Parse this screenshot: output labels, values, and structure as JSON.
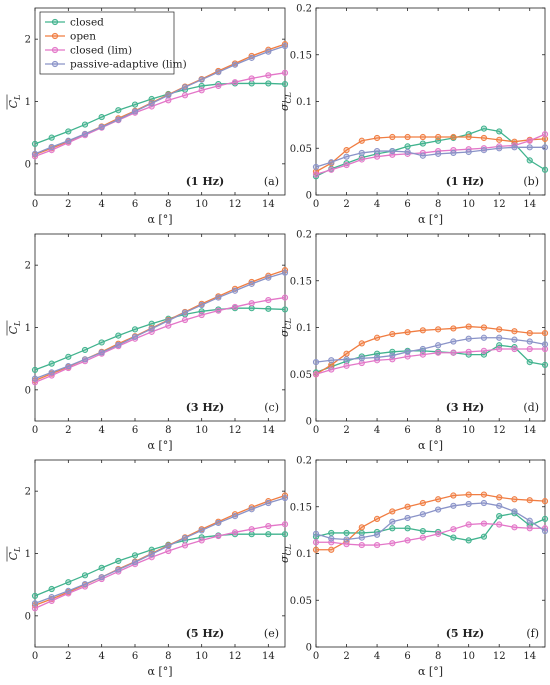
{
  "colors": {
    "closed": "#41b38e",
    "open": "#f07d42",
    "closed_lim": "#e376c8",
    "passive": "#8a93c8"
  },
  "legend": [
    "closed",
    "open",
    "closed (lim)",
    "passive-adaptive (lim)"
  ],
  "chart_data": [
    {
      "type": "line",
      "id": "a",
      "tag": "(a)",
      "freq": "(1 Hz)",
      "xlabel": "α [°]",
      "ylabel": "C_L",
      "ylim": [
        -0.5,
        2.5
      ],
      "xlim": [
        0,
        15
      ],
      "yticks": [
        "0",
        "1",
        "2"
      ],
      "xticks": [
        "0",
        "2",
        "4",
        "6",
        "8",
        "10",
        "12",
        "14"
      ],
      "x": [
        0,
        1,
        2,
        3,
        4,
        5,
        6,
        7,
        8,
        9,
        10,
        11,
        12,
        13,
        14,
        15
      ],
      "series": [
        {
          "name": "closed",
          "values": [
            0.32,
            0.42,
            0.52,
            0.63,
            0.75,
            0.86,
            0.95,
            1.04,
            1.12,
            1.19,
            1.25,
            1.28,
            1.29,
            1.29,
            1.29,
            1.28
          ]
        },
        {
          "name": "open",
          "values": [
            0.15,
            0.25,
            0.36,
            0.48,
            0.6,
            0.73,
            0.85,
            0.98,
            1.11,
            1.24,
            1.36,
            1.49,
            1.61,
            1.73,
            1.83,
            1.92
          ]
        },
        {
          "name": "closed (lim)",
          "values": [
            0.12,
            0.22,
            0.34,
            0.46,
            0.58,
            0.7,
            0.82,
            0.92,
            1.02,
            1.1,
            1.18,
            1.25,
            1.31,
            1.37,
            1.42,
            1.46
          ]
        },
        {
          "name": "passive-adaptive (lim)",
          "values": [
            0.16,
            0.27,
            0.37,
            0.48,
            0.59,
            0.71,
            0.84,
            0.97,
            1.1,
            1.23,
            1.35,
            1.47,
            1.59,
            1.7,
            1.8,
            1.89
          ]
        }
      ]
    },
    {
      "type": "line",
      "id": "b",
      "tag": "(b)",
      "freq": "(1 Hz)",
      "xlabel": "α [°]",
      "ylabel": "σ_CL",
      "ylim": [
        0,
        0.2
      ],
      "xlim": [
        0,
        15
      ],
      "yticks": [
        "0",
        "0.05",
        "0.1",
        "0.15",
        "0.2"
      ],
      "xticks": [
        "0",
        "2",
        "4",
        "6",
        "8",
        "10",
        "12",
        "14"
      ],
      "x": [
        0,
        1,
        2,
        3,
        4,
        5,
        6,
        7,
        8,
        9,
        10,
        11,
        12,
        13,
        14,
        15
      ],
      "series": [
        {
          "name": "closed",
          "values": [
            0.02,
            0.028,
            0.034,
            0.04,
            0.044,
            0.047,
            0.052,
            0.055,
            0.058,
            0.061,
            0.065,
            0.071,
            0.068,
            0.055,
            0.037,
            0.027
          ]
        },
        {
          "name": "open",
          "values": [
            0.025,
            0.034,
            0.048,
            0.058,
            0.061,
            0.062,
            0.062,
            0.062,
            0.062,
            0.062,
            0.062,
            0.061,
            0.059,
            0.057,
            0.059,
            0.06
          ]
        },
        {
          "name": "closed (lim)",
          "values": [
            0.022,
            0.027,
            0.032,
            0.038,
            0.041,
            0.043,
            0.044,
            0.045,
            0.047,
            0.048,
            0.049,
            0.05,
            0.052,
            0.053,
            0.058,
            0.065
          ]
        },
        {
          "name": "passive-adaptive (lim)",
          "values": [
            0.03,
            0.035,
            0.041,
            0.045,
            0.047,
            0.047,
            0.046,
            0.042,
            0.044,
            0.045,
            0.046,
            0.048,
            0.05,
            0.051,
            0.051,
            0.051
          ]
        }
      ]
    },
    {
      "type": "line",
      "id": "c",
      "tag": "(c)",
      "freq": "(3 Hz)",
      "xlabel": "α [°]",
      "ylabel": "C_L",
      "ylim": [
        -0.5,
        2.5
      ],
      "xlim": [
        0,
        15
      ],
      "yticks": [
        "0",
        "1",
        "2"
      ],
      "xticks": [
        "0",
        "2",
        "4",
        "6",
        "8",
        "10",
        "12",
        "14"
      ],
      "x": [
        0,
        1,
        2,
        3,
        4,
        5,
        6,
        7,
        8,
        9,
        10,
        11,
        12,
        13,
        14,
        15
      ],
      "series": [
        {
          "name": "closed",
          "values": [
            0.32,
            0.42,
            0.53,
            0.64,
            0.76,
            0.87,
            0.97,
            1.06,
            1.14,
            1.21,
            1.26,
            1.29,
            1.31,
            1.31,
            1.3,
            1.29
          ]
        },
        {
          "name": "open",
          "values": [
            0.15,
            0.26,
            0.37,
            0.49,
            0.61,
            0.74,
            0.86,
            0.99,
            1.12,
            1.25,
            1.38,
            1.5,
            1.62,
            1.73,
            1.83,
            1.92
          ]
        },
        {
          "name": "closed (lim)",
          "values": [
            0.12,
            0.23,
            0.35,
            0.46,
            0.58,
            0.7,
            0.82,
            0.93,
            1.03,
            1.12,
            1.2,
            1.27,
            1.33,
            1.39,
            1.44,
            1.48
          ]
        },
        {
          "name": "passive-adaptive (lim)",
          "values": [
            0.18,
            0.28,
            0.38,
            0.49,
            0.6,
            0.72,
            0.85,
            0.98,
            1.11,
            1.24,
            1.36,
            1.48,
            1.59,
            1.7,
            1.8,
            1.88
          ]
        }
      ]
    },
    {
      "type": "line",
      "id": "d",
      "tag": "(d)",
      "freq": "(3 Hz)",
      "xlabel": "α [°]",
      "ylabel": "σ_CL",
      "ylim": [
        0,
        0.2
      ],
      "xlim": [
        0,
        15
      ],
      "yticks": [
        "0",
        "0.05",
        "0.1",
        "0.15",
        "0.2"
      ],
      "xticks": [
        "0",
        "2",
        "4",
        "6",
        "8",
        "10",
        "12",
        "14"
      ],
      "x": [
        0,
        1,
        2,
        3,
        4,
        5,
        6,
        7,
        8,
        9,
        10,
        11,
        12,
        13,
        14,
        15
      ],
      "series": [
        {
          "name": "closed",
          "values": [
            0.052,
            0.058,
            0.064,
            0.069,
            0.072,
            0.074,
            0.075,
            0.075,
            0.074,
            0.073,
            0.071,
            0.071,
            0.081,
            0.079,
            0.063,
            0.06
          ]
        },
        {
          "name": "open",
          "values": [
            0.05,
            0.06,
            0.072,
            0.083,
            0.089,
            0.093,
            0.095,
            0.097,
            0.098,
            0.099,
            0.101,
            0.1,
            0.098,
            0.096,
            0.094,
            0.094
          ]
        },
        {
          "name": "closed (lim)",
          "values": [
            0.05,
            0.055,
            0.059,
            0.062,
            0.065,
            0.066,
            0.069,
            0.071,
            0.073,
            0.073,
            0.074,
            0.075,
            0.077,
            0.077,
            0.077,
            0.077
          ]
        },
        {
          "name": "passive-adaptive (lim)",
          "values": [
            0.063,
            0.065,
            0.066,
            0.067,
            0.068,
            0.07,
            0.074,
            0.077,
            0.081,
            0.085,
            0.088,
            0.089,
            0.089,
            0.087,
            0.085,
            0.082
          ]
        }
      ]
    },
    {
      "type": "line",
      "id": "e",
      "tag": "(e)",
      "freq": "(5 Hz)",
      "xlabel": "α [°]",
      "ylabel": "C_L",
      "ylim": [
        -0.5,
        2.5
      ],
      "xlim": [
        0,
        15
      ],
      "yticks": [
        "0",
        "1",
        "2"
      ],
      "xticks": [
        "0",
        "2",
        "4",
        "6",
        "8",
        "10",
        "12",
        "14"
      ],
      "x": [
        0,
        1,
        2,
        3,
        4,
        5,
        6,
        7,
        8,
        9,
        10,
        11,
        12,
        13,
        14,
        15
      ],
      "series": [
        {
          "name": "closed",
          "values": [
            0.32,
            0.43,
            0.54,
            0.65,
            0.77,
            0.88,
            0.97,
            1.06,
            1.14,
            1.21,
            1.26,
            1.29,
            1.31,
            1.31,
            1.31,
            1.31
          ]
        },
        {
          "name": "open",
          "values": [
            0.17,
            0.27,
            0.38,
            0.5,
            0.62,
            0.75,
            0.87,
            1.0,
            1.13,
            1.26,
            1.39,
            1.51,
            1.63,
            1.74,
            1.84,
            1.93
          ]
        },
        {
          "name": "closed (lim)",
          "values": [
            0.12,
            0.24,
            0.36,
            0.47,
            0.59,
            0.71,
            0.83,
            0.94,
            1.04,
            1.13,
            1.21,
            1.28,
            1.34,
            1.39,
            1.44,
            1.47
          ]
        },
        {
          "name": "passive-adaptive (lim)",
          "values": [
            0.2,
            0.3,
            0.4,
            0.51,
            0.62,
            0.74,
            0.86,
            0.99,
            1.12,
            1.25,
            1.37,
            1.49,
            1.6,
            1.71,
            1.81,
            1.89
          ]
        }
      ]
    },
    {
      "type": "line",
      "id": "f",
      "tag": "(f)",
      "freq": "(5 Hz)",
      "xlabel": "α [°]",
      "ylabel": "σ_CL",
      "ylim": [
        0,
        0.2
      ],
      "xlim": [
        0,
        15
      ],
      "yticks": [
        "0",
        "0.05",
        "0.1",
        "0.15",
        "0.2"
      ],
      "xticks": [
        "0",
        "2",
        "4",
        "6",
        "8",
        "10",
        "12",
        "14"
      ],
      "x": [
        0,
        1,
        2,
        3,
        4,
        5,
        6,
        7,
        8,
        9,
        10,
        11,
        12,
        13,
        14,
        15
      ],
      "series": [
        {
          "name": "closed",
          "values": [
            0.118,
            0.122,
            0.122,
            0.122,
            0.123,
            0.127,
            0.127,
            0.124,
            0.123,
            0.117,
            0.114,
            0.118,
            0.14,
            0.143,
            0.13,
            0.137
          ]
        },
        {
          "name": "open",
          "values": [
            0.104,
            0.104,
            0.113,
            0.128,
            0.137,
            0.145,
            0.15,
            0.154,
            0.158,
            0.162,
            0.163,
            0.163,
            0.16,
            0.158,
            0.157,
            0.156
          ]
        },
        {
          "name": "closed (lim)",
          "values": [
            0.112,
            0.112,
            0.11,
            0.109,
            0.109,
            0.111,
            0.114,
            0.117,
            0.121,
            0.126,
            0.131,
            0.132,
            0.131,
            0.128,
            0.127,
            0.127
          ]
        },
        {
          "name": "passive-adaptive (lim)",
          "values": [
            0.121,
            0.116,
            0.115,
            0.117,
            0.12,
            0.134,
            0.138,
            0.142,
            0.147,
            0.151,
            0.153,
            0.154,
            0.151,
            0.145,
            0.135,
            0.124
          ]
        }
      ]
    }
  ]
}
